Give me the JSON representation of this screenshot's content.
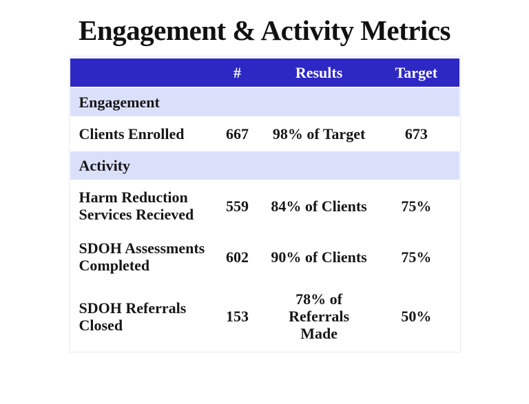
{
  "title": "Engagement & Activity Metrics",
  "colors": {
    "header-bg": "#2D28C3",
    "header-text": "#FAFAFD",
    "section-bg": "#DBE0FA",
    "body-text": "#171717",
    "table-border": "#E6EAFB",
    "page-bg": "#FFFFFF"
  },
  "table": {
    "columns": [
      {
        "label": ""
      },
      {
        "label": "#"
      },
      {
        "label": "Results"
      },
      {
        "label": "Target"
      }
    ],
    "rows": [
      {
        "type": "section",
        "label": "Engagement"
      },
      {
        "type": "data",
        "label": "Clients Enrolled",
        "count": "667",
        "results": "98% of Target",
        "target": "673"
      },
      {
        "type": "section",
        "label": "Activity"
      },
      {
        "type": "data",
        "label": "Harm Reduction\nServices Recieved",
        "count": "559",
        "results": "84% of Clients",
        "target": "75%"
      },
      {
        "type": "data",
        "label": "SDOH Assessments\nCompleted",
        "count": "602",
        "results": "90% of Clients",
        "target": "75%"
      },
      {
        "type": "data",
        "label": "SDOH Referrals\nClosed",
        "count": "153",
        "results": "78% of\nReferrals\nMade",
        "target": "50%"
      }
    ]
  },
  "chart_data": {
    "type": "table",
    "title": "Engagement & Activity Metrics",
    "columns": [
      "",
      "#",
      "Results",
      "Target"
    ],
    "sections": [
      {
        "name": "Engagement",
        "rows": [
          {
            "label": "Clients Enrolled",
            "count": 667,
            "results": "98% of Target",
            "target": "673"
          }
        ]
      },
      {
        "name": "Activity",
        "rows": [
          {
            "label": "Harm Reduction Services Recieved",
            "count": 559,
            "results": "84% of Clients",
            "target": "75%"
          },
          {
            "label": "SDOH Assessments Completed",
            "count": 602,
            "results": "90% of Clients",
            "target": "75%"
          },
          {
            "label": "SDOH Referrals Closed",
            "count": 153,
            "results": "78% of Referrals Made",
            "target": "50%"
          }
        ]
      }
    ]
  }
}
